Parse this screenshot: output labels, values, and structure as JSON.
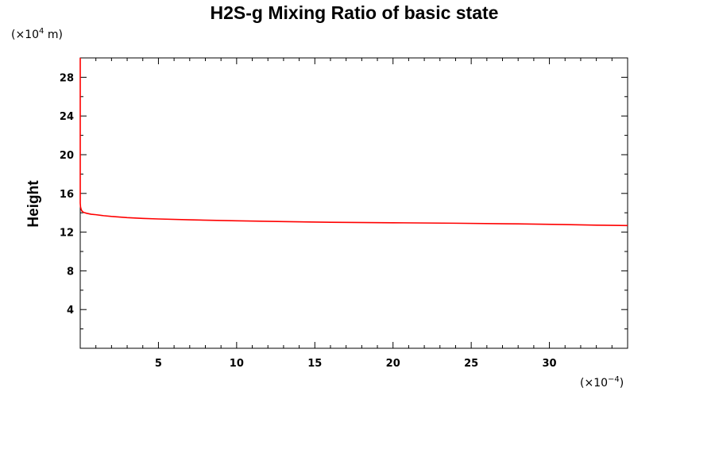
{
  "chart_data": {
    "type": "line",
    "title": "H2S-g Mixing Ratio of basic state",
    "ylabel": "Height",
    "x_unit": {
      "prefix": "(×10",
      "exp": "−4",
      "suffix": ")"
    },
    "y_unit": {
      "prefix": "(×10",
      "exp": "4",
      "suffix": " m)"
    },
    "xlim": [
      0,
      35
    ],
    "ylim": [
      0,
      30
    ],
    "x_ticks": [
      {
        "value": 5,
        "label": "5"
      },
      {
        "value": 10,
        "label": "10"
      },
      {
        "value": 15,
        "label": "15"
      },
      {
        "value": 20,
        "label": "20"
      },
      {
        "value": 25,
        "label": "25"
      },
      {
        "value": 30,
        "label": "30"
      }
    ],
    "y_ticks": [
      {
        "value": 4,
        "label": "4"
      },
      {
        "value": 8,
        "label": "8"
      },
      {
        "value": 12,
        "label": "12"
      },
      {
        "value": 16,
        "label": "16"
      },
      {
        "value": 20,
        "label": "20"
      },
      {
        "value": 24,
        "label": "24"
      },
      {
        "value": 28,
        "label": "28"
      }
    ],
    "series": [
      {
        "color": "#ff0000",
        "x": [
          0,
          0,
          0.02,
          0.05,
          0.1,
          0.2,
          0.4,
          0.7,
          1.0,
          1.5,
          2,
          3,
          4,
          5,
          7,
          10,
          13,
          16,
          20,
          24,
          28,
          31,
          33,
          35
        ],
        "y": [
          30,
          15.0,
          14.6,
          14.4,
          14.2,
          14.05,
          13.95,
          13.85,
          13.8,
          13.7,
          13.62,
          13.5,
          13.42,
          13.36,
          13.27,
          13.17,
          13.09,
          13.02,
          12.97,
          12.92,
          12.85,
          12.78,
          12.72,
          12.68
        ]
      }
    ],
    "grid": false
  }
}
